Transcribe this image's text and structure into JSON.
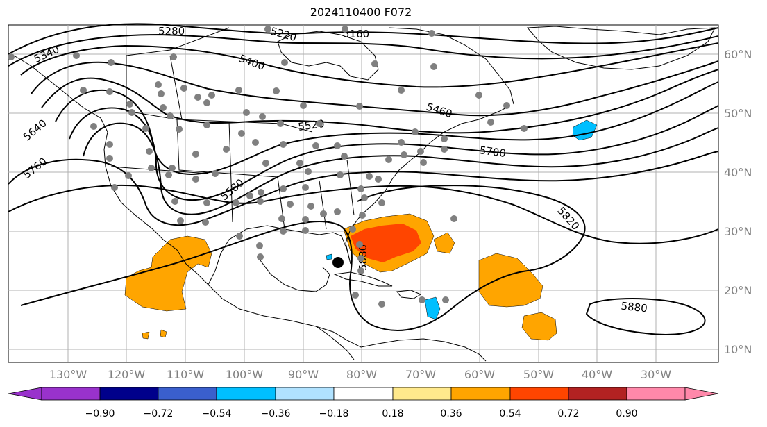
{
  "title": "2024110400 F072",
  "lon_labels": [
    "130°W",
    "120°W",
    "110°W",
    "100°W",
    "90°W",
    "80°W",
    "70°W",
    "60°W",
    "50°W",
    "40°W",
    "30°W"
  ],
  "lat_labels": [
    "60°N",
    "50°N",
    "40°N",
    "30°N",
    "20°N",
    "10°N"
  ],
  "contour_labels": [
    "5280",
    "5220",
    "5160",
    "5340",
    "5400",
    "5520",
    "5460",
    "5640",
    "5760",
    "5580",
    "5700",
    "5820",
    "5880",
    "5880"
  ],
  "colorbar": {
    "ticks": [
      "−0.90",
      "−0.72",
      "−0.54",
      "−0.36",
      "−0.18",
      "0.18",
      "0.36",
      "0.54",
      "0.72",
      "0.90"
    ],
    "colors": [
      "#9932cc",
      "#00008b",
      "#3a5fcd",
      "#00bfff",
      "#b0e2ff",
      "#ffffff",
      "#ffe98c",
      "#ffa500",
      "#ff4500",
      "#b22222",
      "#ff88aa"
    ]
  },
  "colors": {
    "grid": "#b0b0b0",
    "station": "#808080",
    "anomaly_pos_1": "#ffa500",
    "anomaly_pos_2": "#ff4500",
    "anomaly_neg": "#00bfff",
    "axis_label": "#808080"
  },
  "markers": [
    "storm-center"
  ]
}
